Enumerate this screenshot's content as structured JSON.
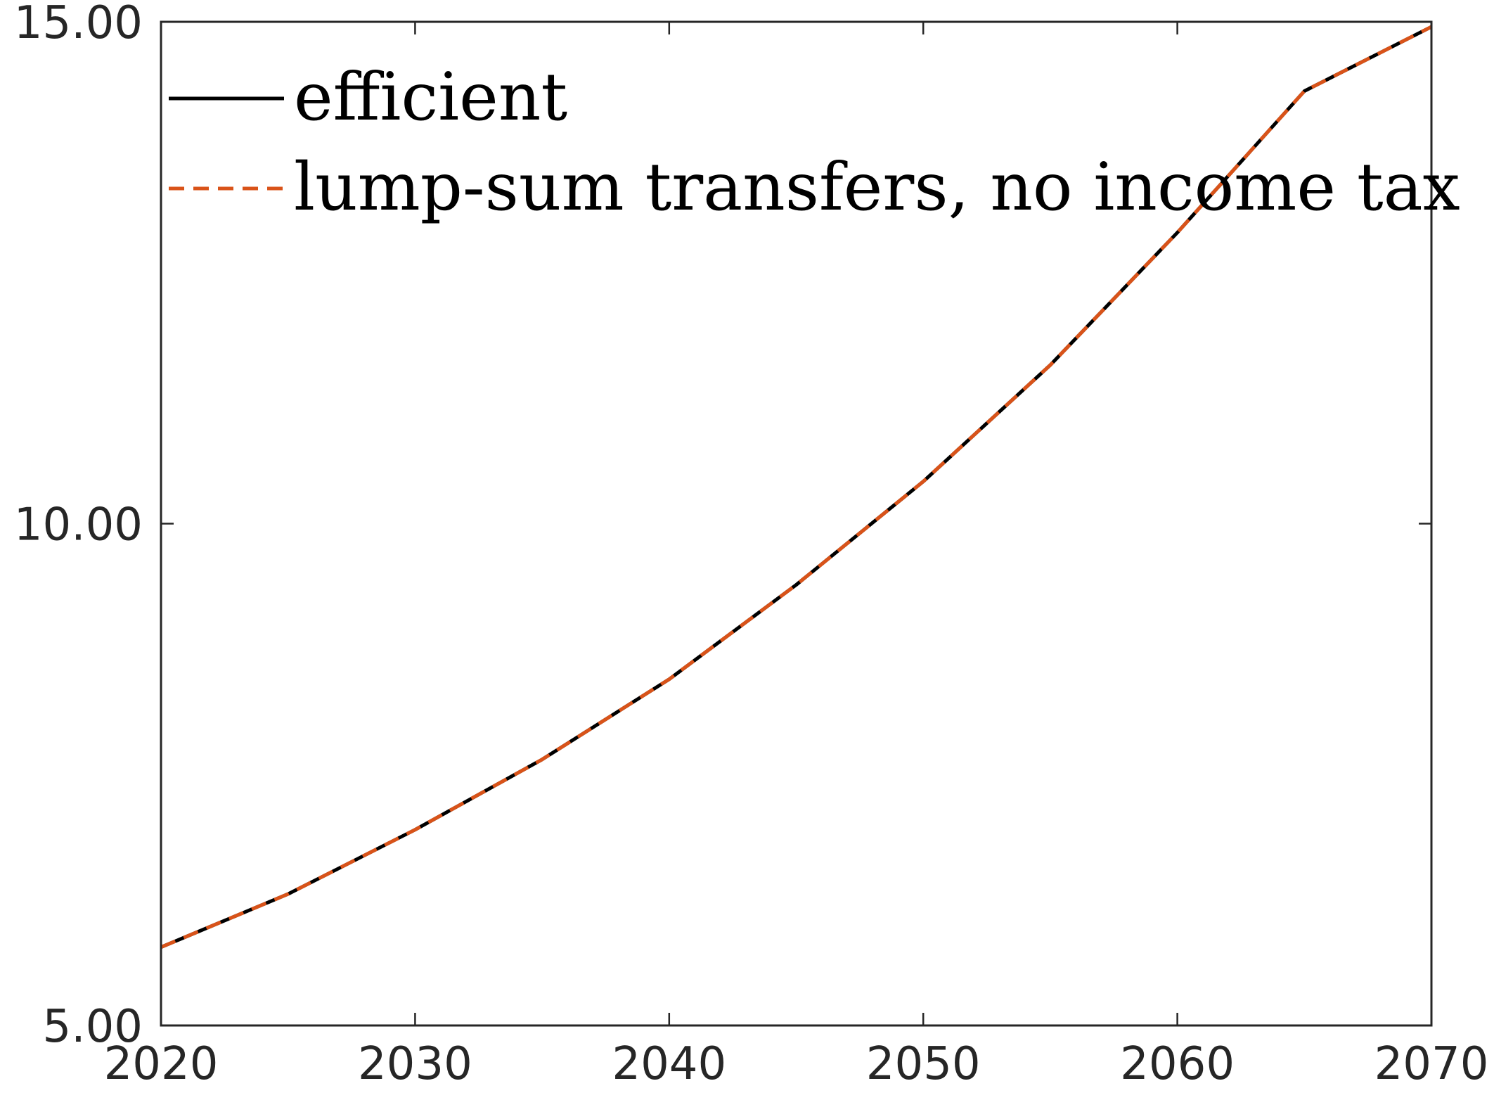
{
  "chart_data": {
    "type": "line",
    "title": "",
    "xlabel": "",
    "ylabel": "",
    "xlim": [
      2020,
      2070
    ],
    "ylim": [
      5,
      15
    ],
    "x_ticks": [
      2020,
      2030,
      2040,
      2050,
      2060,
      2070
    ],
    "x_tick_labels": [
      "2020",
      "2030",
      "2040",
      "2050",
      "2060",
      "2070"
    ],
    "y_ticks": [
      5,
      10,
      15
    ],
    "y_tick_labels": [
      "5.00",
      "10.00",
      "15.00"
    ],
    "grid": false,
    "legend_position": "top-left",
    "x": [
      2020,
      2025,
      2030,
      2035,
      2040,
      2045,
      2050,
      2055,
      2060,
      2065,
      2070
    ],
    "series": [
      {
        "name": "efficient",
        "color": "#000000",
        "line_style": "solid",
        "values": [
          5.78,
          6.31,
          6.95,
          7.65,
          8.45,
          9.39,
          10.42,
          11.58,
          12.9,
          14.31,
          14.95
        ]
      },
      {
        "name": "lump-sum transfers, no income tax",
        "color": "#D95319",
        "line_style": "dashed",
        "values": [
          5.78,
          6.31,
          6.95,
          7.65,
          8.45,
          9.39,
          10.42,
          11.58,
          12.9,
          14.31,
          14.95
        ]
      }
    ]
  }
}
